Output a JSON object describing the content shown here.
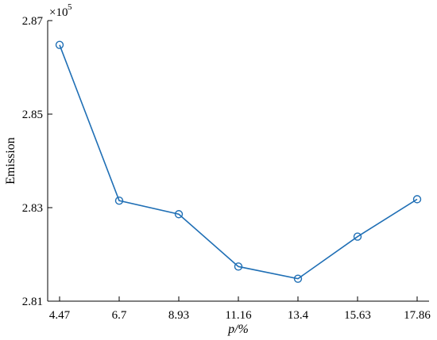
{
  "chart_data": {
    "type": "line",
    "title": "",
    "xlabel": "p/%",
    "ylabel": "Emission",
    "x": [
      4.47,
      6.7,
      8.93,
      11.16,
      13.4,
      15.63,
      17.86
    ],
    "x_tick_labels": [
      "4.47",
      "6.7",
      "8.93",
      "11.16",
      "13.4",
      "15.63",
      "17.86"
    ],
    "y_tick_labels": [
      "2.81",
      "2.83",
      "2.85",
      "2.87"
    ],
    "y_ticks": [
      2.81,
      2.83,
      2.85,
      2.87
    ],
    "y_scale_label": "×10",
    "y_scale_exponent": "5",
    "ylim": [
      2.81,
      2.87
    ],
    "grid": false,
    "series": [
      {
        "color": "#1f6fb5",
        "marker": "circle",
        "values": [
          2.8648,
          2.8315,
          2.8286,
          2.8174,
          2.8148,
          2.8238,
          2.8318
        ]
      }
    ]
  }
}
